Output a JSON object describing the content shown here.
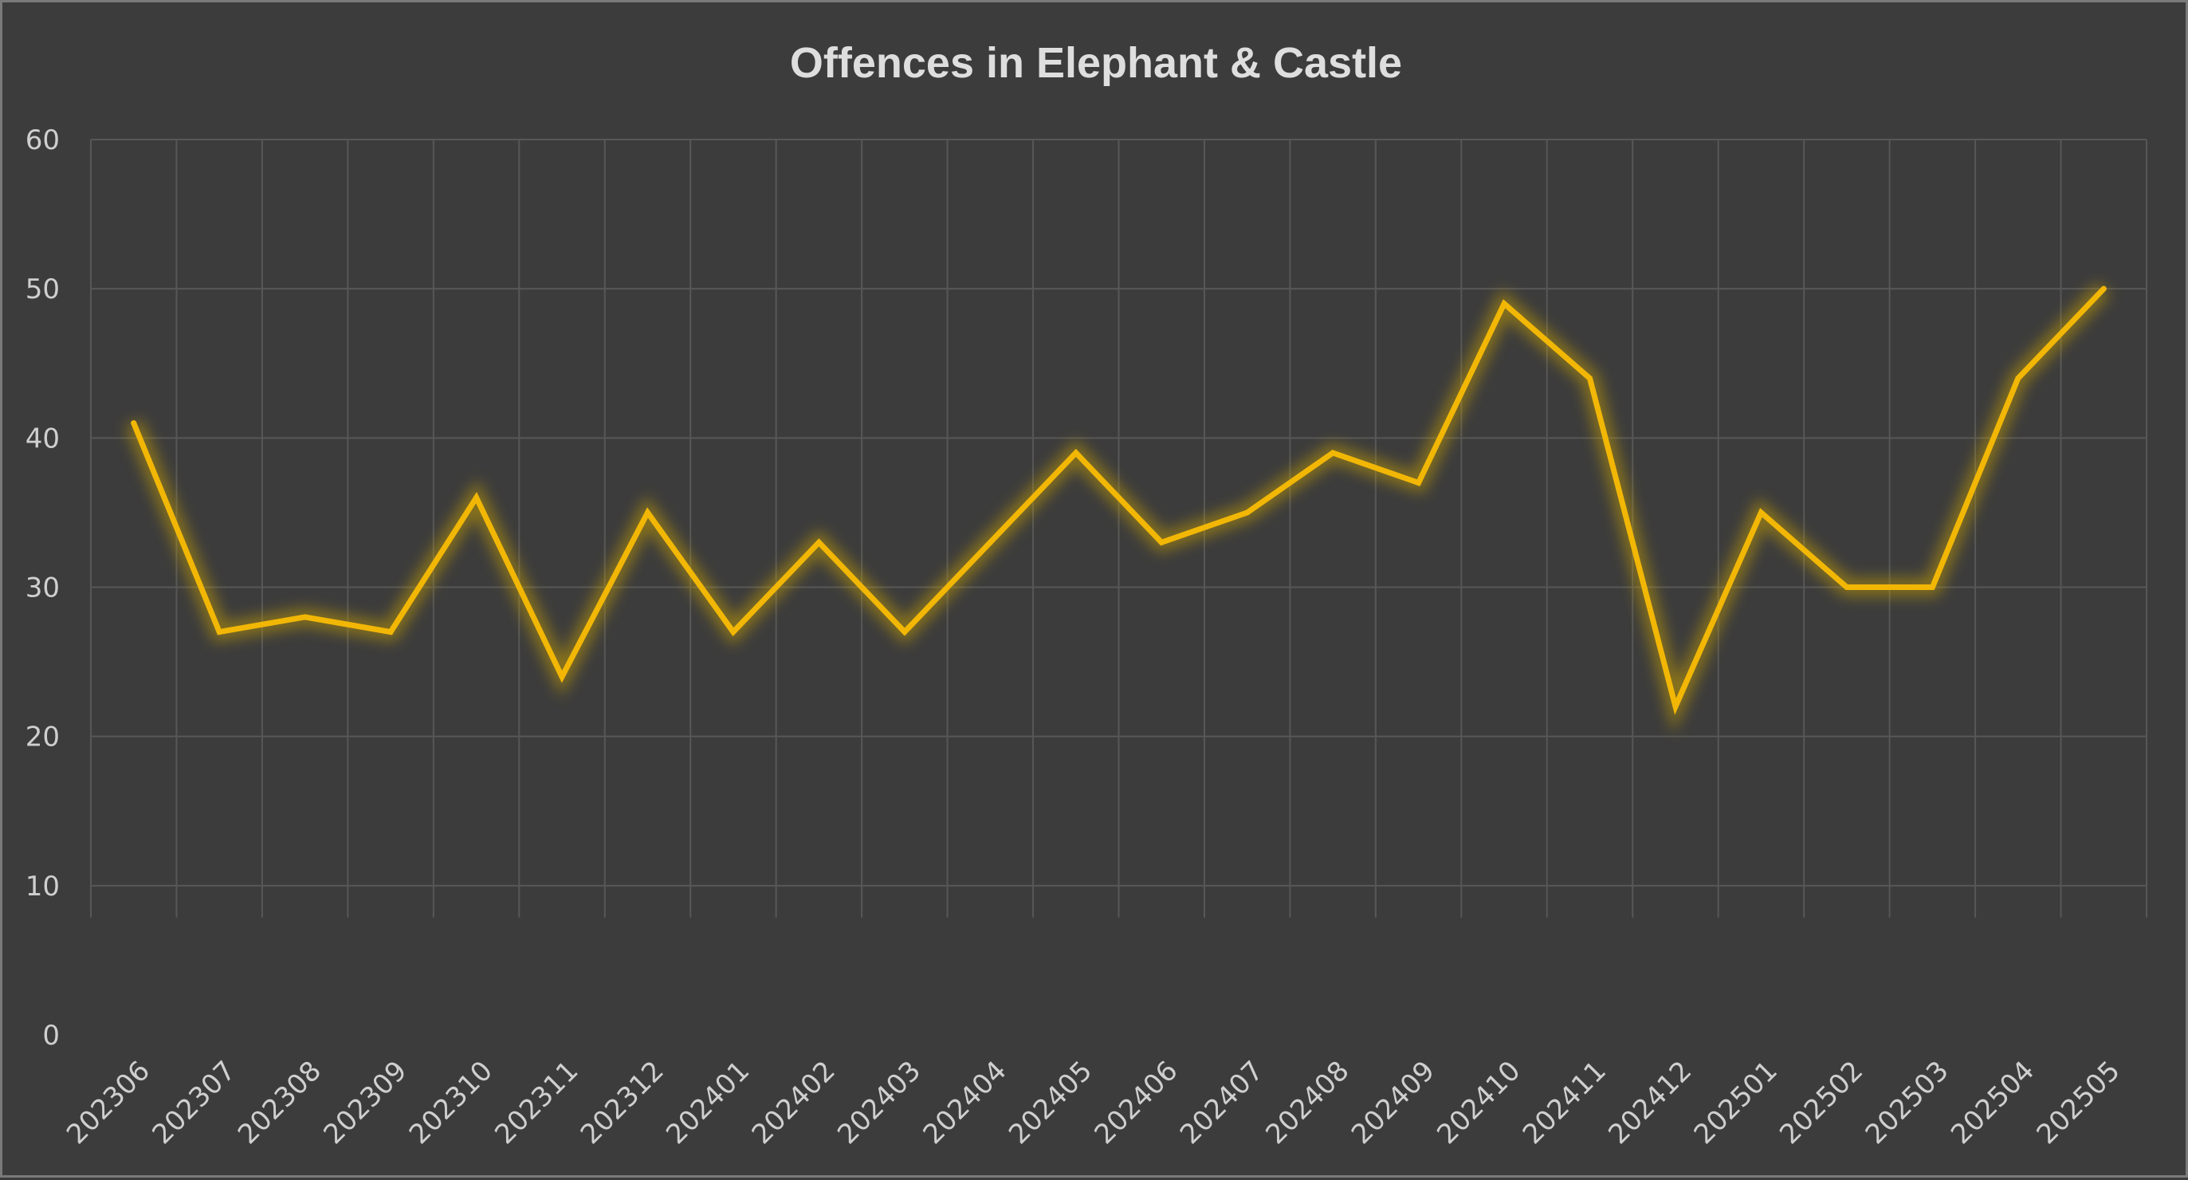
{
  "chart_data": {
    "type": "line",
    "title": "Offences in Elephant & Castle",
    "xlabel": "",
    "ylabel": "",
    "categories": [
      "202306",
      "202307",
      "202308",
      "202309",
      "202310",
      "202311",
      "202312",
      "202401",
      "202402",
      "202403",
      "202404",
      "202405",
      "202406",
      "202407",
      "202408",
      "202409",
      "202410",
      "202411",
      "202412",
      "202501",
      "202502",
      "202503",
      "202504",
      "202505"
    ],
    "series": [
      {
        "values": [
          41,
          27,
          28,
          27,
          36,
          24,
          35,
          27,
          33,
          27,
          33,
          39,
          33,
          35,
          39,
          37,
          49,
          44,
          22,
          35,
          30,
          30,
          44,
          50
        ]
      }
    ],
    "ylim": [
      0,
      60
    ],
    "yticks": [
      0,
      10,
      20,
      30,
      40,
      50,
      60
    ],
    "grid": true,
    "legend": "none",
    "colors": {
      "background": "#3c3c3c",
      "line": "#f2b705",
      "glow": "#c8a000",
      "grid": "#575757",
      "text": "#cfcfcf",
      "title": "#dedede"
    }
  }
}
